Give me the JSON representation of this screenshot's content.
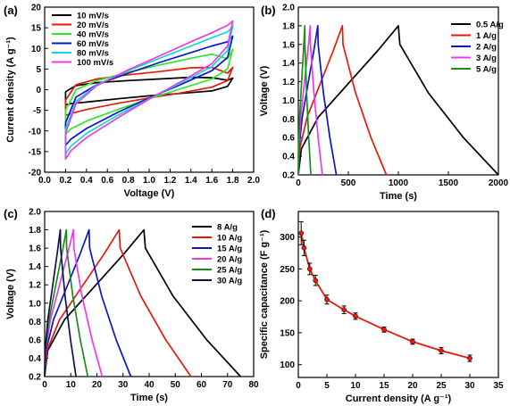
{
  "chart_data": [
    {
      "panel": "(a)",
      "type": "line",
      "xlabel": "Voltage (V)",
      "ylabel": "Current density (A g⁻¹)",
      "xlim": [
        0.0,
        2.0
      ],
      "ylim": [
        -20,
        20
      ],
      "xticks": [
        "0.0",
        "0.2",
        "0.4",
        "0.6",
        "0.8",
        "1.0",
        "1.2",
        "1.4",
        "1.6",
        "1.8",
        "2.0"
      ],
      "yticks": [
        "-20",
        "-15",
        "-10",
        "-5",
        "0",
        "5",
        "10",
        "15",
        "20"
      ],
      "legend_position": "top-left",
      "series": [
        {
          "name": "10 mV/s",
          "color": "#000000",
          "anodic": [
            [
              0.2,
              -0.5
            ],
            [
              0.3,
              1.0
            ],
            [
              0.5,
              1.7
            ],
            [
              0.8,
              2.2
            ],
            [
              1.1,
              2.6
            ],
            [
              1.4,
              3.0
            ],
            [
              1.6,
              2.9
            ],
            [
              1.75,
              2.3
            ],
            [
              1.8,
              2.8
            ]
          ],
          "cathodic": [
            [
              1.8,
              2.8
            ],
            [
              1.75,
              0.8
            ],
            [
              1.6,
              -0.3
            ],
            [
              1.3,
              -0.9
            ],
            [
              1.0,
              -1.5
            ],
            [
              0.7,
              -2.2
            ],
            [
              0.4,
              -3.0
            ],
            [
              0.25,
              -3.4
            ],
            [
              0.2,
              -3.7
            ],
            [
              0.2,
              -0.5
            ]
          ]
        },
        {
          "name": "20 mV/s",
          "color": "#e8190c",
          "anodic": [
            [
              0.2,
              -2.5
            ],
            [
              0.3,
              1.2
            ],
            [
              0.5,
              2.6
            ],
            [
              0.8,
              3.6
            ],
            [
              1.1,
              4.4
            ],
            [
              1.4,
              5.3
            ],
            [
              1.6,
              5.4
            ],
            [
              1.75,
              4.0
            ],
            [
              1.8,
              5.4
            ]
          ],
          "cathodic": [
            [
              1.8,
              5.4
            ],
            [
              1.75,
              2.2
            ],
            [
              1.6,
              0.6
            ],
            [
              1.3,
              -0.8
            ],
            [
              1.0,
              -2.0
            ],
            [
              0.7,
              -3.3
            ],
            [
              0.4,
              -4.8
            ],
            [
              0.25,
              -5.8
            ],
            [
              0.2,
              -6.3
            ],
            [
              0.2,
              -2.5
            ]
          ]
        },
        {
          "name": "40 mV/s",
          "color": "#2ee82e",
          "anodic": [
            [
              0.2,
              -5.0
            ],
            [
              0.3,
              0.0
            ],
            [
              0.5,
              2.2
            ],
            [
              0.8,
              4.2
            ],
            [
              1.1,
              6.0
            ],
            [
              1.4,
              7.6
            ],
            [
              1.6,
              8.6
            ],
            [
              1.75,
              7.5
            ],
            [
              1.8,
              9.8
            ]
          ],
          "cathodic": [
            [
              1.8,
              9.8
            ],
            [
              1.75,
              5.0
            ],
            [
              1.6,
              2.6
            ],
            [
              1.3,
              0.2
            ],
            [
              1.0,
              -2.2
            ],
            [
              0.7,
              -4.8
            ],
            [
              0.4,
              -7.6
            ],
            [
              0.25,
              -9.5
            ],
            [
              0.2,
              -10.8
            ],
            [
              0.2,
              -5.0
            ]
          ]
        },
        {
          "name": "60 mV/s",
          "color": "#0b16c8",
          "anodic": [
            [
              0.2,
              -8.0
            ],
            [
              0.3,
              -1.8
            ],
            [
              0.5,
              1.2
            ],
            [
              0.8,
              4.0
            ],
            [
              1.1,
              6.6
            ],
            [
              1.4,
              9.0
            ],
            [
              1.6,
              10.6
            ],
            [
              1.75,
              11.6
            ],
            [
              1.8,
              13.0
            ]
          ],
          "cathodic": [
            [
              1.8,
              13.0
            ],
            [
              1.75,
              7.8
            ],
            [
              1.6,
              4.6
            ],
            [
              1.3,
              1.2
            ],
            [
              1.0,
              -2.0
            ],
            [
              0.7,
              -5.5
            ],
            [
              0.4,
              -9.4
            ],
            [
              0.25,
              -12.0
            ],
            [
              0.2,
              -13.5
            ],
            [
              0.2,
              -8.0
            ]
          ]
        },
        {
          "name": "80 mV/s",
          "color": "#12d8d8",
          "anodic": [
            [
              0.2,
              -9.5
            ],
            [
              0.3,
              -2.8
            ],
            [
              0.5,
              1.2
            ],
            [
              0.8,
              4.6
            ],
            [
              1.1,
              7.6
            ],
            [
              1.4,
              10.6
            ],
            [
              1.6,
              12.6
            ],
            [
              1.75,
              14.0
            ],
            [
              1.8,
              15.4
            ]
          ],
          "cathodic": [
            [
              1.8,
              15.4
            ],
            [
              1.75,
              9.5
            ],
            [
              1.6,
              5.6
            ],
            [
              1.3,
              1.6
            ],
            [
              1.0,
              -2.2
            ],
            [
              0.7,
              -6.2
            ],
            [
              0.4,
              -10.6
            ],
            [
              0.25,
              -13.7
            ],
            [
              0.2,
              -15.5
            ],
            [
              0.2,
              -9.5
            ]
          ]
        },
        {
          "name": "100 mV/s",
          "color": "#e83ce8",
          "anodic": [
            [
              0.2,
              -10.5
            ],
            [
              0.3,
              -3.4
            ],
            [
              0.5,
              1.0
            ],
            [
              0.8,
              4.8
            ],
            [
              1.1,
              8.2
            ],
            [
              1.4,
              11.6
            ],
            [
              1.6,
              13.8
            ],
            [
              1.75,
              15.6
            ],
            [
              1.8,
              16.6
            ]
          ],
          "cathodic": [
            [
              1.8,
              16.6
            ],
            [
              1.75,
              10.6
            ],
            [
              1.6,
              6.3
            ],
            [
              1.3,
              1.9
            ],
            [
              1.0,
              -2.3
            ],
            [
              0.7,
              -6.8
            ],
            [
              0.4,
              -11.6
            ],
            [
              0.25,
              -14.8
            ],
            [
              0.2,
              -16.8
            ],
            [
              0.2,
              -10.5
            ]
          ]
        }
      ]
    },
    {
      "panel": "(b)",
      "type": "line",
      "xlabel": "Time (s)",
      "ylabel": "Voltage (V)",
      "xlim": [
        0,
        2000
      ],
      "ylim": [
        0.2,
        2.0
      ],
      "xticks": [
        "0",
        "500",
        "1000",
        "1500",
        "2000"
      ],
      "yticks": [
        "0.2",
        "0.4",
        "0.6",
        "0.8",
        "1.0",
        "1.2",
        "1.4",
        "1.6",
        "1.8",
        "2.0"
      ],
      "legend_position": "top-right",
      "series": [
        {
          "name": "0.5 A/g",
          "color": "#000000",
          "peak_time": 1000,
          "end_time": 2000
        },
        {
          "name": "1 A/g",
          "color": "#e8190c",
          "peak_time": 440,
          "end_time": 880
        },
        {
          "name": "2 A/g",
          "color": "#0b16c8",
          "peak_time": 195,
          "end_time": 380
        },
        {
          "name": "3 A/g",
          "color": "#e83ce8",
          "peak_time": 120,
          "end_time": 240
        },
        {
          "name": "5 A/g",
          "color": "#1c8c1c",
          "peak_time": 65,
          "end_time": 125
        }
      ]
    },
    {
      "panel": "(c)",
      "type": "line",
      "xlabel": "Time (s)",
      "ylabel": "Voltage (V)",
      "xlim": [
        0,
        80
      ],
      "ylim": [
        0.2,
        2.0
      ],
      "xticks": [
        "0",
        "10",
        "20",
        "30",
        "40",
        "50",
        "60",
        "70",
        "80"
      ],
      "yticks": [
        "0.2",
        "0.4",
        "0.6",
        "0.8",
        "1.0",
        "1.2",
        "1.4",
        "1.6",
        "1.8",
        "2.0"
      ],
      "legend_position": "top-right",
      "series": [
        {
          "name": "8 A/g",
          "color": "#000000",
          "peak_time": 38,
          "end_time": 75
        },
        {
          "name": "10 A/g",
          "color": "#e8190c",
          "peak_time": 28.5,
          "end_time": 56
        },
        {
          "name": "15 A/g",
          "color": "#0b16c8",
          "peak_time": 17,
          "end_time": 33
        },
        {
          "name": "20 A/g",
          "color": "#e83ce8",
          "peak_time": 11,
          "end_time": 22
        },
        {
          "name": "25 A/g",
          "color": "#1c8c1c",
          "peak_time": 8.3,
          "end_time": 16.5
        },
        {
          "name": "30 A/g",
          "color": "#101050",
          "peak_time": 6,
          "end_time": 12
        }
      ]
    },
    {
      "panel": "(d)",
      "type": "scatter",
      "xlabel": "Current density (A g⁻¹)",
      "ylabel": "Specific capacitance (F g⁻¹)",
      "xlim": [
        0,
        35
      ],
      "ylim": [
        80,
        340
      ],
      "xticks": [
        "0",
        "5",
        "10",
        "15",
        "20",
        "25",
        "30",
        "35"
      ],
      "yticks": [
        "100",
        "150",
        "200",
        "250",
        "300"
      ],
      "series": [
        {
          "color": "#e8190c",
          "x": [
            0.5,
            1,
            2,
            3,
            5,
            8,
            10,
            15,
            20,
            25,
            30
          ],
          "y": [
            306,
            283,
            250,
            232,
            202,
            186,
            176,
            155,
            136,
            122,
            110
          ],
          "err": [
            18,
            12,
            9,
            8,
            7,
            6,
            5,
            4,
            4,
            5,
            5
          ]
        }
      ]
    }
  ]
}
